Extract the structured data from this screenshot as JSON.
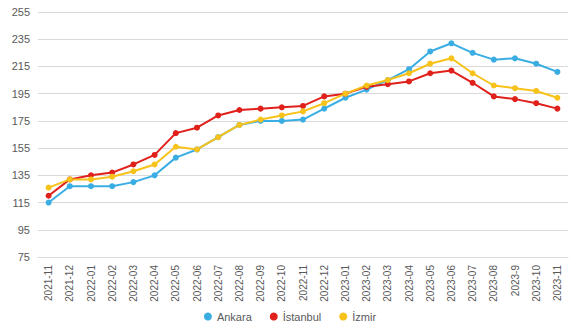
{
  "chart_data": {
    "type": "line",
    "categories": [
      "2021-11",
      "2021-12",
      "2022-01",
      "2022-02",
      "2022-03",
      "2022-04",
      "2022-05",
      "2022-06",
      "2022-07",
      "2022-08",
      "2022-09",
      "2022-10",
      "2022-11",
      "2022-12",
      "2023-01",
      "2023-02",
      "2023-03",
      "2023-04",
      "2023-05",
      "2023-06",
      "2023-07",
      "2023-08",
      "2023-9",
      "2023-10",
      "2023-11"
    ],
    "series": [
      {
        "name": "Ankara",
        "color": "#3aaee3",
        "values": [
          115,
          127,
          127,
          127,
          130,
          135,
          148,
          154,
          163,
          172,
          175,
          175,
          176,
          184,
          192,
          198,
          205,
          213,
          226,
          232,
          225,
          220,
          221,
          217,
          211
        ]
      },
      {
        "name": "İstanbul",
        "color": "#e0201b",
        "values": [
          120,
          132,
          135,
          137,
          143,
          150,
          166,
          170,
          179,
          183,
          184,
          185,
          186,
          193,
          195,
          200,
          202,
          204,
          210,
          212,
          203,
          193,
          191,
          188,
          184
        ]
      },
      {
        "name": "İzmir",
        "color": "#f7c21a",
        "values": [
          126,
          132,
          132,
          134,
          138,
          143,
          156,
          154,
          163,
          172,
          176,
          179,
          182,
          188,
          195,
          201,
          205,
          210,
          217,
          221,
          210,
          201,
          199,
          197,
          192
        ]
      }
    ],
    "ylim": [
      75,
      255
    ],
    "yticks": [
      75,
      95,
      115,
      135,
      155,
      175,
      195,
      215,
      235,
      255
    ],
    "grid": true,
    "legend": "bottom",
    "marker": "circle"
  }
}
